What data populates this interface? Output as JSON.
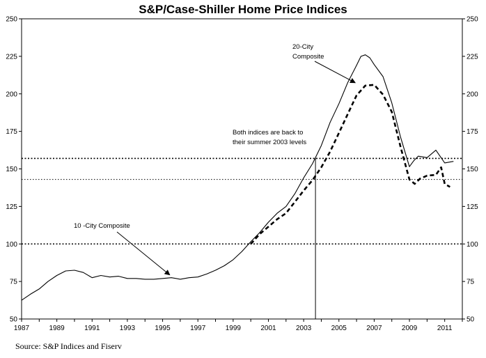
{
  "chart_data": {
    "type": "line",
    "title": "S&P/Case-Shiller Home Price Indices",
    "source": "Source: S&P Indices and Fiserv",
    "xlim": [
      1987,
      2012
    ],
    "ylim": [
      50,
      250
    ],
    "y_ticks": [
      50,
      75,
      100,
      125,
      150,
      175,
      200,
      225,
      250
    ],
    "x_ticks": [
      1987,
      1989,
      1991,
      1993,
      1995,
      1997,
      1999,
      2001,
      2003,
      2005,
      2007,
      2009,
      2011
    ],
    "series": [
      {
        "name": "10 -City Composite",
        "style": "solid",
        "color": "#000000",
        "x": [
          1987.0,
          1987.5,
          1988.0,
          1988.5,
          1989.0,
          1989.5,
          1990.0,
          1990.5,
          1991.0,
          1991.5,
          1992.0,
          1992.5,
          1993.0,
          1993.5,
          1994.0,
          1994.5,
          1995.0,
          1995.5,
          1996.0,
          1996.5,
          1997.0,
          1997.5,
          1998.0,
          1998.5,
          1999.0,
          1999.5,
          2000.0,
          2000.5,
          2001.0,
          2001.5,
          2002.0,
          2002.5,
          2003.0,
          2003.5,
          2004.0,
          2004.5,
          2005.0,
          2005.5,
          2006.0,
          2006.25,
          2006.5,
          2006.75,
          2007.0,
          2007.5,
          2008.0,
          2008.5,
          2009.0,
          2009.25,
          2009.5,
          2010.0,
          2010.5,
          2011.0,
          2011.5
        ],
        "y": [
          62.5,
          66.5,
          70,
          75,
          79,
          82,
          82.5,
          81,
          77.5,
          79,
          78,
          78.5,
          77,
          77,
          76.5,
          76.5,
          77,
          77.5,
          76.5,
          77.5,
          78,
          80,
          82.5,
          85.5,
          89.5,
          95,
          101.5,
          107.5,
          114.5,
          120.5,
          125,
          133.5,
          144,
          153.5,
          165.5,
          181,
          193.5,
          207.5,
          219,
          225,
          226,
          224,
          219.5,
          211.5,
          194,
          171,
          151.5,
          155.5,
          158.5,
          157.5,
          162.5,
          154,
          155
        ]
      },
      {
        "name": "20-City Composite",
        "style": "dashed",
        "color": "#000000",
        "x": [
          2000.0,
          2000.5,
          2001.0,
          2001.5,
          2002.0,
          2002.5,
          2003.0,
          2003.5,
          2004.0,
          2004.5,
          2005.0,
          2005.5,
          2006.0,
          2006.5,
          2007.0,
          2007.5,
          2008.0,
          2008.5,
          2009.0,
          2009.3,
          2009.6,
          2010.0,
          2010.5,
          2010.8,
          2011.0,
          2011.3
        ],
        "y": [
          100,
          106.5,
          111.5,
          116.5,
          120.5,
          128,
          135.5,
          142.5,
          151,
          161.5,
          174,
          186.5,
          199,
          205.5,
          206,
          199.5,
          188,
          164.5,
          143,
          140,
          143.5,
          145.5,
          146,
          151,
          140,
          138
        ]
      }
    ],
    "reference_lines": [
      {
        "y": 100,
        "style": "dotted"
      },
      {
        "y": 157,
        "style": "dotted"
      },
      {
        "y": 143,
        "style": "dotted"
      },
      {
        "x": 2003.67,
        "style": "solid"
      }
    ],
    "annotations": [
      {
        "lines": [
          "20-City",
          "Composite"
        ],
        "pointer_to": {
          "x": 2006.0,
          "y": 206.5
        }
      },
      {
        "lines": [
          "Both indices are back to",
          "their summer 2003 levels"
        ]
      },
      {
        "lines": [
          "10 -City Composite"
        ],
        "pointer_to": {
          "x": 1995.4,
          "y": 78
        }
      }
    ],
    "grid": false,
    "legend": "none"
  }
}
